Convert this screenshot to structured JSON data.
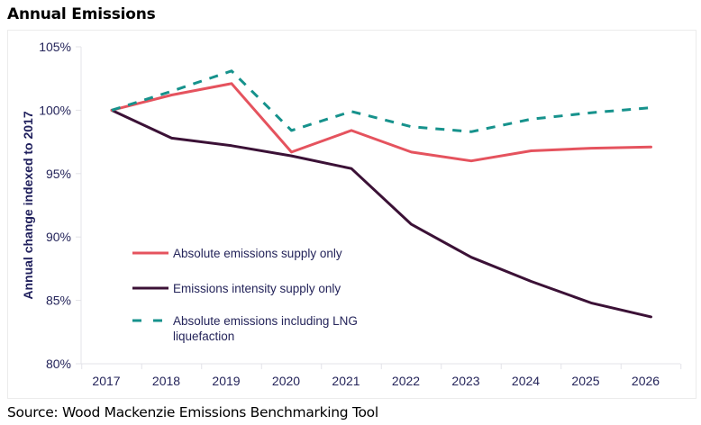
{
  "header": {
    "title": "Annual Emissions"
  },
  "footer": {
    "source": "Source: Wood Mackenzie Emissions Benchmarking Tool"
  },
  "chart_data": {
    "type": "line",
    "title": "Annual Emissions",
    "xlabel": "",
    "ylabel": "Annual change indexed to 2017",
    "x": [
      "2017",
      "2018",
      "2019",
      "2020",
      "2021",
      "2022",
      "2023",
      "2024",
      "2025",
      "2026"
    ],
    "ylim": [
      80,
      105
    ],
    "yticks": [
      80,
      85,
      90,
      95,
      100,
      105
    ],
    "ytick_labels": [
      "80%",
      "85%",
      "90%",
      "95%",
      "100%",
      "105%"
    ],
    "grid": false,
    "legend_position": "lower-left",
    "series": [
      {
        "name": "Absolute emissions supply only",
        "color": "#e5535e",
        "style": "solid",
        "values": [
          100,
          101.2,
          102.1,
          96.7,
          98.4,
          96.7,
          96.0,
          96.8,
          97.0,
          97.1
        ]
      },
      {
        "name": "Emissions intensity supply only",
        "color": "#3b1136",
        "style": "solid",
        "values": [
          100,
          97.8,
          97.2,
          96.4,
          95.4,
          91.0,
          88.4,
          86.5,
          84.8,
          83.7
        ]
      },
      {
        "name": "Absolute emissions including LNG liquefaction",
        "color": "#16928c",
        "style": "dashed",
        "values": [
          100,
          101.5,
          103.1,
          98.4,
          99.9,
          98.7,
          98.3,
          99.3,
          99.8,
          100.2
        ]
      }
    ],
    "legend_lines": [
      [
        "Absolute emissions supply only"
      ],
      [
        "Emissions intensity supply only"
      ],
      [
        "Absolute emissions including LNG",
        "liquefaction"
      ]
    ]
  }
}
